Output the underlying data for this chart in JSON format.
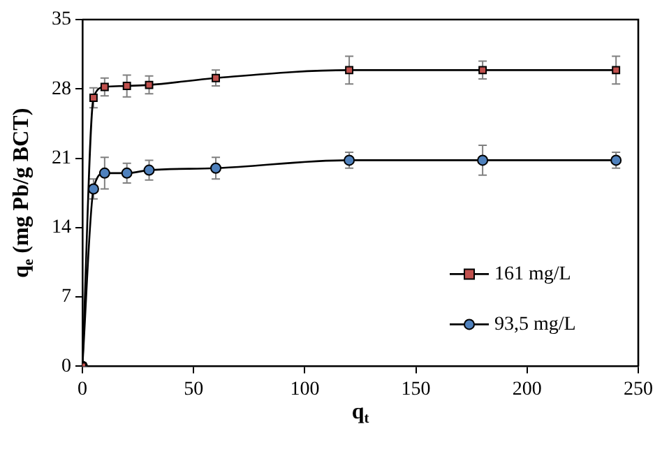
{
  "chart_data": {
    "type": "line",
    "xlabel": "q$_{t}$",
    "ylabel": "q$_{e}$ (mg Pb/g BCT)",
    "x": [
      0,
      5,
      10,
      20,
      30,
      60,
      120,
      180,
      240
    ],
    "series": [
      {
        "name": "161 mg/L",
        "color": "#c0504d",
        "marker": "square",
        "values": [
          0,
          27.1,
          28.2,
          28.3,
          28.4,
          29.1,
          29.9,
          29.9,
          29.9
        ],
        "errors": [
          null,
          1.0,
          0.9,
          1.1,
          0.9,
          0.8,
          1.4,
          0.9,
          1.4
        ]
      },
      {
        "name": "93,5 mg/L",
        "color": "#4f81bd",
        "marker": "circle",
        "values": [
          0,
          17.9,
          19.5,
          19.5,
          19.8,
          20.0,
          20.8,
          20.8,
          20.8
        ],
        "errors": [
          null,
          1.0,
          1.6,
          1.0,
          1.0,
          1.1,
          0.8,
          1.5,
          0.8
        ]
      }
    ],
    "xlim": [
      0,
      250
    ],
    "xticks": [
      0,
      50,
      100,
      150,
      200,
      250
    ],
    "ylim": [
      0,
      35
    ],
    "yticks": [
      0,
      7,
      14,
      21,
      28,
      35
    ],
    "grid": false,
    "legend": "bottom right",
    "line_style": "solid"
  }
}
